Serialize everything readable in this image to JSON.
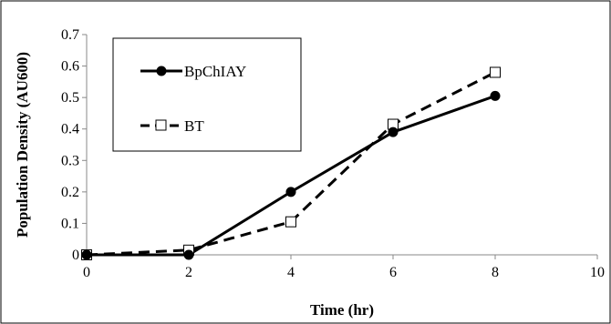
{
  "chart_data": {
    "type": "line",
    "title": "",
    "xlabel": "Time (hr)",
    "ylabel": "Population Density (AU600)",
    "xlim": [
      0,
      10
    ],
    "ylim": [
      0,
      0.7
    ],
    "x_ticks": [
      "0",
      "2",
      "4",
      "6",
      "8",
      "10"
    ],
    "y_ticks": [
      "0",
      "0.1",
      "0.2",
      "0.3",
      "0.4",
      "0.5",
      "0.6",
      "0.7"
    ],
    "grid": false,
    "legend_position": "top-left",
    "series": [
      {
        "name": "BpChIAY",
        "style": "solid",
        "marker": "filled-circle",
        "color": "#000000",
        "x": [
          0,
          2,
          4,
          6,
          8
        ],
        "y": [
          0.0,
          0.0,
          0.2,
          0.39,
          0.505
        ]
      },
      {
        "name": "BT",
        "style": "dashed",
        "marker": "open-square",
        "color": "#000000",
        "x": [
          0,
          2,
          4,
          6,
          8
        ],
        "y": [
          0.0,
          0.015,
          0.105,
          0.415,
          0.58
        ]
      }
    ]
  }
}
